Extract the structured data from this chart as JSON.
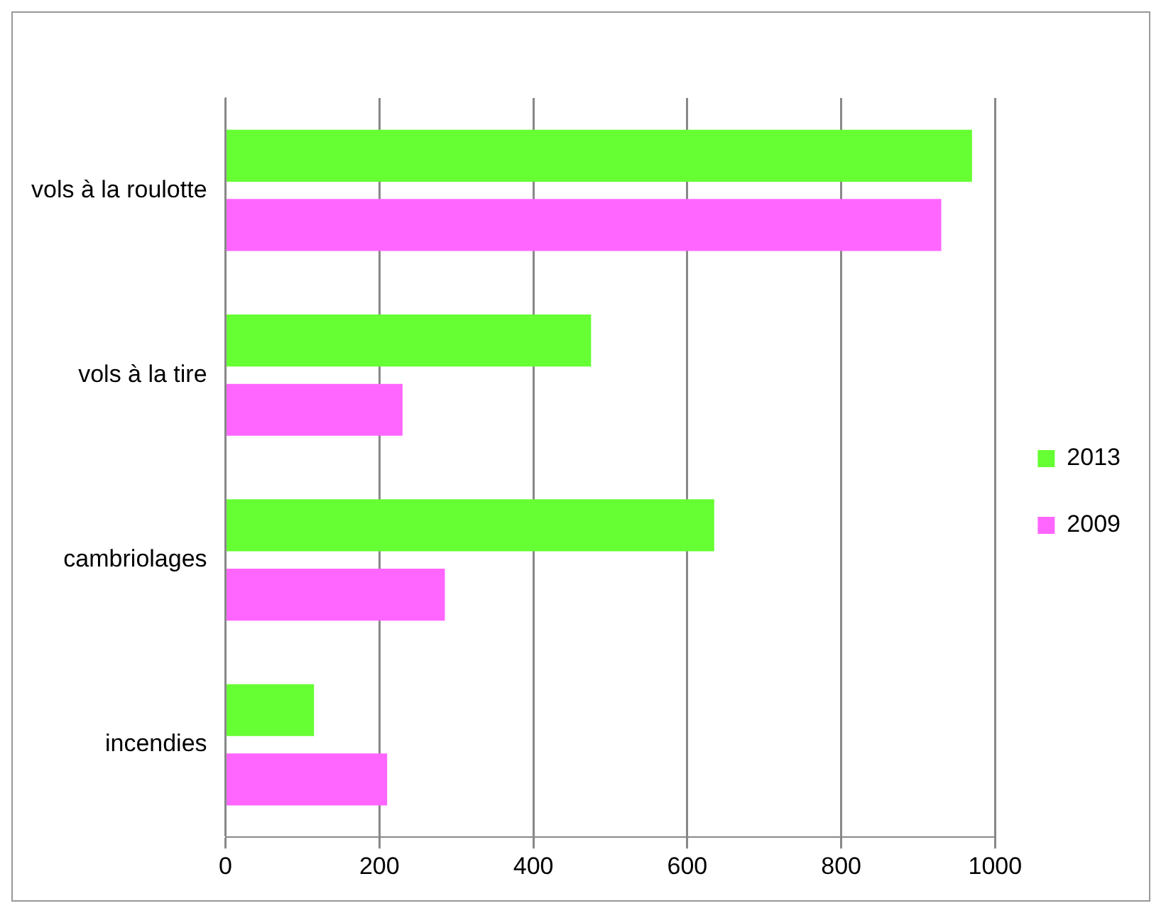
{
  "chart_data": {
    "type": "bar",
    "orientation": "horizontal",
    "categories": [
      "vols à la roulotte",
      "vols à la tire",
      "cambriolages",
      "incendies"
    ],
    "series": [
      {
        "name": "2013",
        "color": "#66ff33",
        "values": [
          970,
          475,
          635,
          115
        ]
      },
      {
        "name": "2009",
        "color": "#ff66ff",
        "values": [
          930,
          230,
          285,
          210
        ]
      }
    ],
    "xlim": [
      0,
      1000
    ],
    "xticks": [
      0,
      200,
      400,
      600,
      800,
      1000
    ],
    "grid": "x",
    "legend": "right"
  }
}
